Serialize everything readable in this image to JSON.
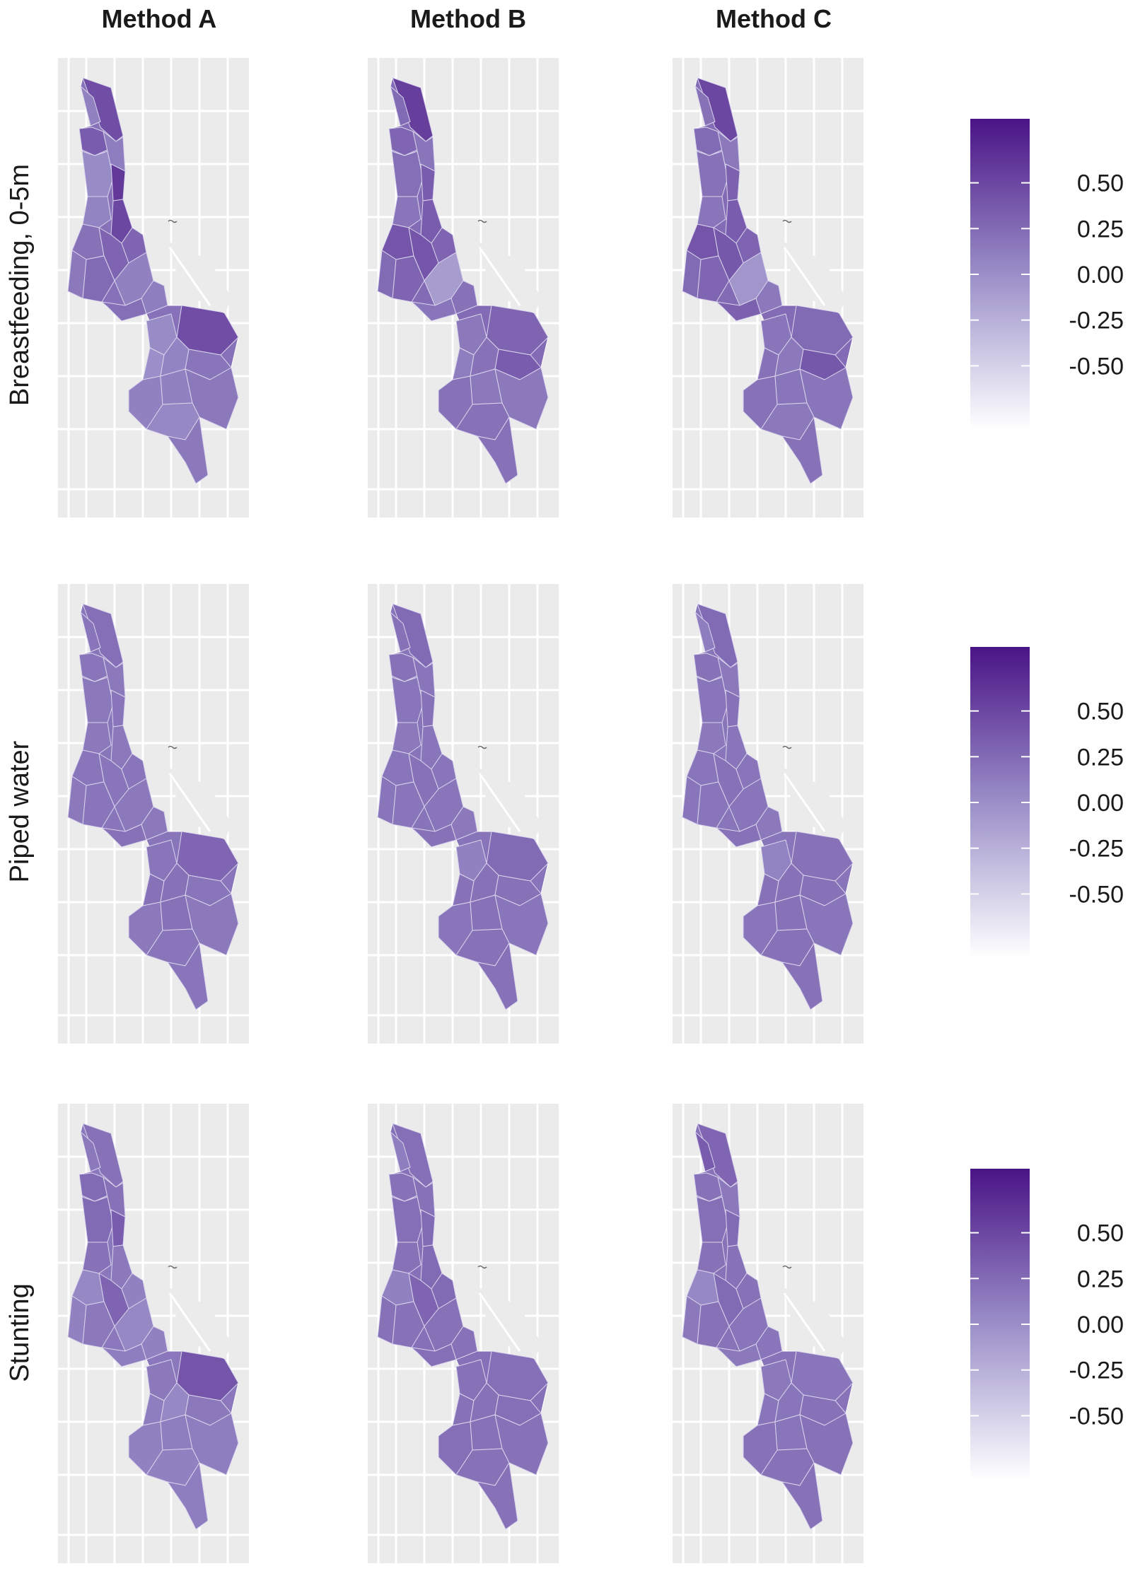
{
  "columns": [
    "Method A",
    "Method B",
    "Method C"
  ],
  "rows": [
    "Breastfeeding, 0-5m",
    "Piped water",
    "Stunting"
  ],
  "legend": {
    "ticks": [
      "0.50",
      "0.25",
      "0.00",
      "-0.25",
      "-0.50"
    ],
    "tick_values": [
      0.5,
      0.25,
      0.0,
      -0.25,
      -0.5
    ],
    "range": [
      -0.85,
      0.85
    ],
    "color_low": "#ffffff",
    "color_high": "#4a1486"
  },
  "chart_data": {
    "type": "heatmap",
    "description_of_values": "relative district-level values on a -0.85..0.85 purple scale; panels by row (indicator) and column (method)",
    "panels": [
      {
        "row": "Breastfeeding, 0-5m",
        "column": "Method A",
        "values": [
          0.45,
          0.1,
          0.35,
          0.12,
          0.02,
          0.08,
          0.6,
          0.5,
          0.2,
          0.3,
          0.3,
          0.15,
          0.25,
          0.1,
          0.22,
          0.12,
          0.45,
          0.02,
          0.0,
          0.08,
          0.18,
          0.1,
          0.1,
          0.15,
          0.05,
          0.15
        ]
      },
      {
        "row": "Breastfeeding, 0-5m",
        "column": "Method B",
        "values": [
          0.55,
          0.25,
          0.28,
          0.18,
          0.22,
          0.18,
          0.35,
          0.35,
          0.4,
          0.4,
          0.3,
          0.25,
          0.3,
          -0.1,
          0.18,
          0.2,
          0.3,
          0.15,
          0.12,
          0.2,
          0.35,
          0.2,
          0.15,
          0.15,
          0.2,
          0.2
        ]
      },
      {
        "row": "Breastfeeding, 0-5m",
        "column": "Method C",
        "values": [
          0.5,
          0.2,
          0.25,
          0.15,
          0.2,
          0.18,
          0.32,
          0.35,
          0.4,
          0.38,
          0.3,
          0.25,
          0.28,
          -0.05,
          0.32,
          0.15,
          0.25,
          0.18,
          0.2,
          0.15,
          0.38,
          0.2,
          0.18,
          0.18,
          0.15,
          0.2
        ]
      },
      {
        "row": "Piped water",
        "column": "Method A",
        "values": [
          0.22,
          0.18,
          0.18,
          0.15,
          0.15,
          0.15,
          0.18,
          0.15,
          0.18,
          0.18,
          0.18,
          0.15,
          0.18,
          0.15,
          0.2,
          0.15,
          0.28,
          0.18,
          0.2,
          0.2,
          0.18,
          0.15,
          0.2,
          0.15,
          0.18,
          0.18
        ]
      },
      {
        "row": "Piped water",
        "column": "Method B",
        "values": [
          0.25,
          0.2,
          0.2,
          0.18,
          0.18,
          0.15,
          0.2,
          0.18,
          0.18,
          0.2,
          0.18,
          0.18,
          0.18,
          0.18,
          0.2,
          0.15,
          0.25,
          0.1,
          0.2,
          0.2,
          0.2,
          0.18,
          0.2,
          0.18,
          0.2,
          0.2
        ]
      },
      {
        "row": "Piped water",
        "column": "Method C",
        "values": [
          0.25,
          0.12,
          0.2,
          0.15,
          0.18,
          0.15,
          0.2,
          0.18,
          0.18,
          0.2,
          0.18,
          0.18,
          0.18,
          0.18,
          0.2,
          0.15,
          0.2,
          0.08,
          0.2,
          0.2,
          0.2,
          0.18,
          0.2,
          0.18,
          0.2,
          0.2
        ]
      },
      {
        "row": "Stunting",
        "column": "Method A",
        "values": [
          0.2,
          0.15,
          0.25,
          0.2,
          0.25,
          0.2,
          0.35,
          0.15,
          0.05,
          0.3,
          0.1,
          0.1,
          0.15,
          0.05,
          0.12,
          0.1,
          0.4,
          0.15,
          0.12,
          0.05,
          0.15,
          0.1,
          0.12,
          0.12,
          0.1,
          0.12
        ]
      },
      {
        "row": "Stunting",
        "column": "Method B",
        "values": [
          0.22,
          0.12,
          0.2,
          0.2,
          0.22,
          0.2,
          0.25,
          0.25,
          0.1,
          0.3,
          0.25,
          0.2,
          0.2,
          0.2,
          0.22,
          0.2,
          0.22,
          0.2,
          0.2,
          0.2,
          0.22,
          0.22,
          0.2,
          0.2,
          0.2,
          0.2
        ]
      },
      {
        "row": "Stunting",
        "column": "Method C",
        "values": [
          0.28,
          0.35,
          0.2,
          0.15,
          0.22,
          0.2,
          0.25,
          0.2,
          0.05,
          0.25,
          0.2,
          0.15,
          0.2,
          0.18,
          0.15,
          0.18,
          0.18,
          0.15,
          0.18,
          0.18,
          0.2,
          0.2,
          0.18,
          0.2,
          0.2,
          0.2
        ]
      }
    ]
  }
}
